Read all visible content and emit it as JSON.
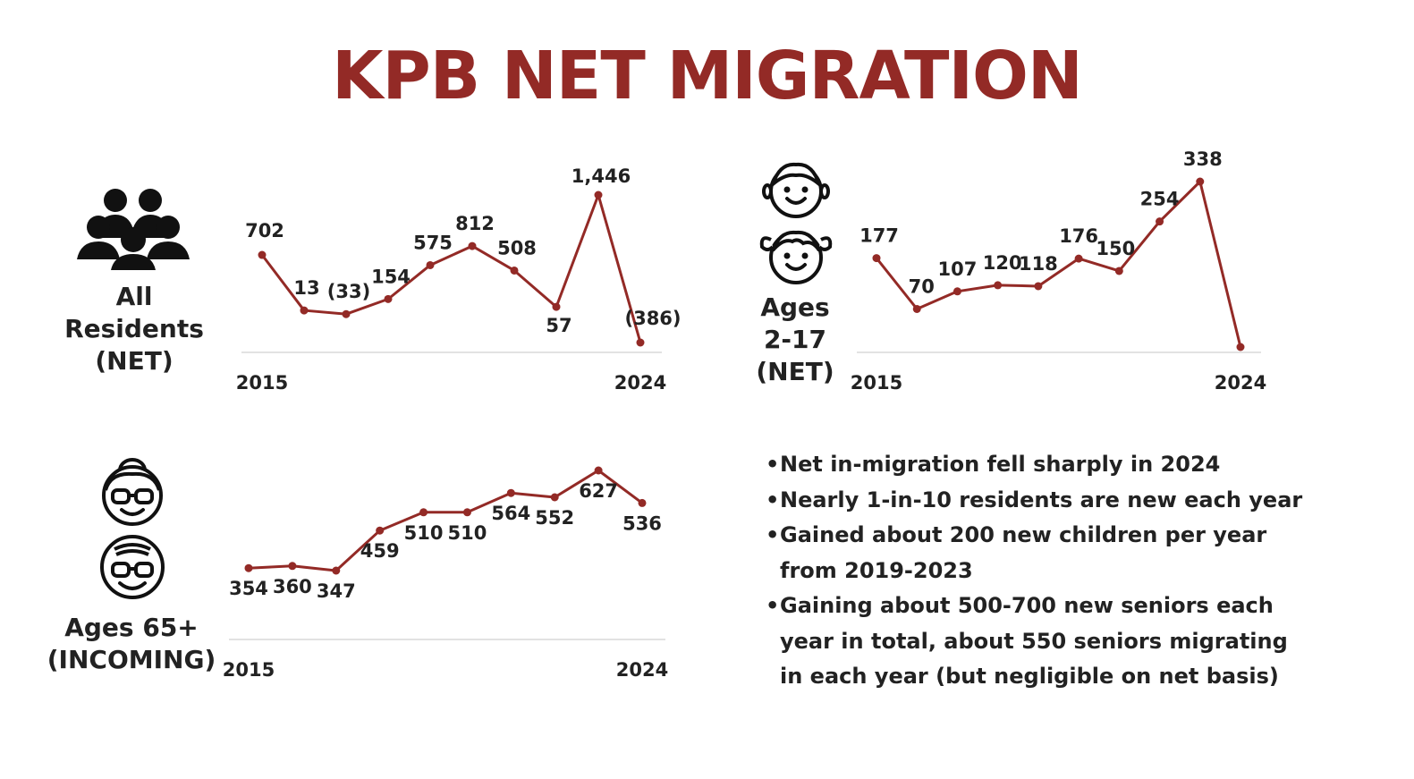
{
  "title": "KPB NET MIGRATION",
  "colors": {
    "accent": "#932a26",
    "axis": "#d9d9d9",
    "text": "#222222"
  },
  "labels": {
    "all": "All\nResidents\n(NET)",
    "kids": "Ages\n2-17\n(NET)",
    "seniors": "Ages 65+\n(INCOMING)"
  },
  "icons": {
    "all": "group-of-people-icon",
    "kids": [
      "boy-face-icon",
      "girl-face-icon"
    ],
    "seniors": [
      "grandmother-face-icon",
      "grandfather-face-icon"
    ]
  },
  "chart_data": [
    {
      "id": "all",
      "type": "line",
      "x": [
        2015,
        2016,
        2017,
        2018,
        2019,
        2020,
        2021,
        2022,
        2023,
        2024
      ],
      "values": [
        702,
        13,
        -33,
        154,
        575,
        812,
        508,
        57,
        1446,
        -386
      ],
      "value_labels": [
        "702",
        "13",
        "(33)",
        "154",
        "575",
        "812",
        "508",
        "57",
        "1,446",
        "(386)"
      ],
      "x_tick_labels": [
        "2015",
        "2024"
      ],
      "y_axis_shown": false,
      "grid": false
    },
    {
      "id": "kids",
      "type": "line",
      "x": [
        2015,
        2016,
        2017,
        2018,
        2019,
        2020,
        2021,
        2022,
        2023,
        2024
      ],
      "values": [
        177,
        70,
        107,
        120,
        118,
        176,
        150,
        254,
        338,
        -10
      ],
      "value_labels": [
        "177",
        "70",
        "107",
        "120",
        "118",
        "176",
        "150",
        "254",
        "338",
        ""
      ],
      "x_tick_labels": [
        "2015",
        "2024"
      ],
      "y_axis_shown": false,
      "grid": false
    },
    {
      "id": "seniors",
      "type": "line",
      "x": [
        2015,
        2016,
        2017,
        2018,
        2019,
        2020,
        2021,
        2022,
        2023,
        2024
      ],
      "values": [
        354,
        360,
        347,
        459,
        510,
        510,
        564,
        552,
        627,
        536
      ],
      "value_labels": [
        "354",
        "360",
        "347",
        "459",
        "510",
        "510",
        "564",
        "552",
        "627",
        "536"
      ],
      "x_tick_labels": [
        "2015",
        "2024"
      ],
      "y_axis_shown": false,
      "grid": false
    }
  ],
  "bullets": [
    "Net in-migration fell sharply in 2024",
    "Nearly 1-in-10 residents are new each year",
    "Gained about 200 new children per year\nfrom 2019-2023",
    "Gaining about 500-700 new seniors each\nyear in total, about 550 seniors migrating\nin each year (but negligible on net basis)"
  ]
}
